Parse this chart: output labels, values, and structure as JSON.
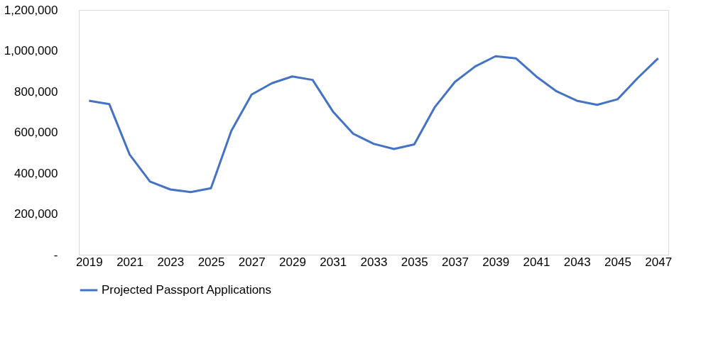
{
  "chart_data": {
    "type": "line",
    "categories": [
      "2019",
      null,
      "2021",
      null,
      "2023",
      null,
      "2025",
      null,
      "2027",
      null,
      "2029",
      null,
      "2031",
      null,
      "2033",
      null,
      "2035",
      null,
      "2037",
      null,
      "2039",
      null,
      "2041",
      null,
      "2043",
      null,
      "2045",
      null,
      "2047"
    ],
    "series": [
      {
        "name": "Projected Passport Applications",
        "color": "#4472c4",
        "values": [
          755000,
          738000,
          491000,
          359000,
          320000,
          307000,
          326000,
          607000,
          785000,
          841000,
          874000,
          857000,
          702000,
          593000,
          544000,
          518000,
          541000,
          722000,
          847000,
          923000,
          973000,
          963000,
          874000,
          801000,
          755000,
          735000,
          762000,
          867000,
          963000
        ]
      }
    ],
    "ylim": [
      0,
      1200000
    ],
    "yticks": [
      {
        "value": 0,
        "label": "-"
      },
      {
        "value": 200000,
        "label": "200,000"
      },
      {
        "value": 400000,
        "label": "400,000"
      },
      {
        "value": 600000,
        "label": "600,000"
      },
      {
        "value": 800000,
        "label": "800,000"
      },
      {
        "value": 1000000,
        "label": "1,000,000"
      },
      {
        "value": 1200000,
        "label": "1,200,000"
      }
    ],
    "grid": false,
    "legend": "bottom",
    "marker": "none",
    "line_style": "solid"
  }
}
